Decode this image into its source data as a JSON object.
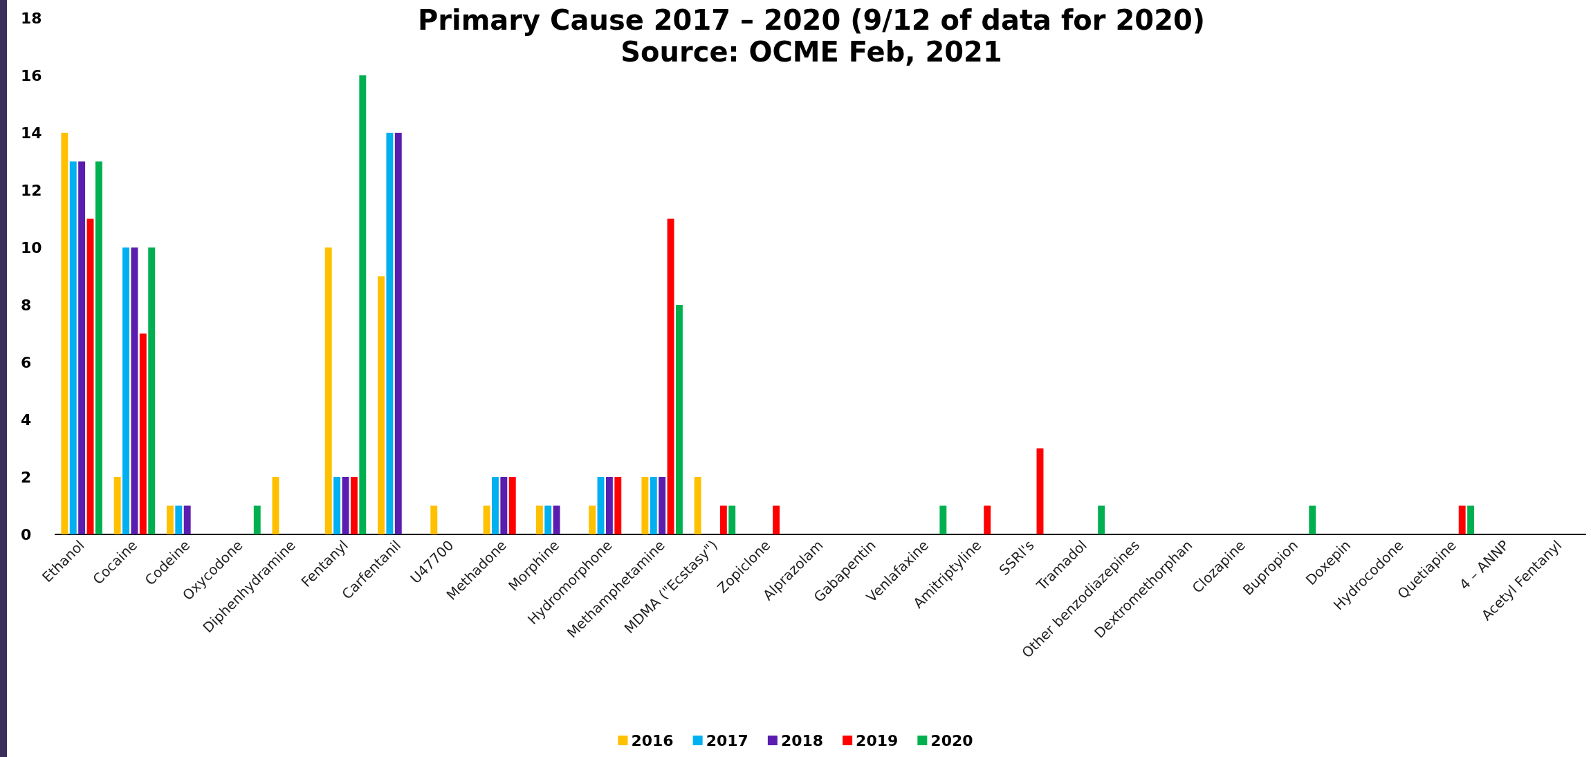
{
  "chart_data": {
    "type": "bar",
    "title": "Primary Cause 2017 – 2020 (9/12 of data for 2020)",
    "subtitle": "Source: OCME Feb, 2021",
    "categories": [
      "Ethanol",
      "Cocaine",
      "Codeine",
      "Oxycodone",
      "Diphenhydramine",
      "Fentanyl",
      "Carfentanil",
      "U47700",
      "Methadone",
      "Morphine",
      "Hydromorphone",
      "Methamphetamine",
      "MDMA (\"Ecstasy\")",
      "Zopiclone",
      "Alprazolam",
      "Gabapentin",
      "Venlafaxine",
      "Amitriptyline",
      "SSRI's",
      "Tramadol",
      "Other benzodiazepines",
      "Dextromethorphan",
      "Clozapine",
      "Bupropion",
      "Doxepin",
      "Hydrocodone",
      "Quetiapine",
      "4 – ANNP",
      "Acetyl Fentanyl"
    ],
    "series": [
      {
        "name": "2016",
        "color": "#ffc000",
        "values": [
          14,
          2,
          1,
          null,
          2,
          10,
          9,
          1,
          1,
          1,
          1,
          2,
          2,
          null,
          null,
          null,
          null,
          null,
          null,
          null,
          null,
          null,
          null,
          null,
          null,
          null,
          null,
          null,
          null
        ]
      },
      {
        "name": "2017",
        "color": "#00b0f0",
        "values": [
          13,
          10,
          1,
          null,
          null,
          2,
          14,
          null,
          2,
          1,
          2,
          2,
          null,
          null,
          null,
          null,
          null,
          null,
          null,
          null,
          null,
          null,
          null,
          null,
          null,
          null,
          null,
          null,
          null
        ]
      },
      {
        "name": "2018",
        "color": "#5b1db0",
        "values": [
          13,
          10,
          1,
          null,
          null,
          2,
          14,
          null,
          2,
          1,
          2,
          2,
          null,
          null,
          null,
          null,
          null,
          null,
          null,
          null,
          null,
          null,
          null,
          null,
          null,
          null,
          null,
          null,
          null
        ]
      },
      {
        "name": "2019",
        "color": "#ff0000",
        "values": [
          11,
          7,
          null,
          null,
          null,
          2,
          null,
          null,
          2,
          null,
          2,
          11,
          1,
          1,
          null,
          null,
          null,
          1,
          3,
          null,
          null,
          null,
          null,
          null,
          null,
          null,
          1,
          null,
          null
        ]
      },
      {
        "name": "2020",
        "color": "#00b050",
        "values": [
          13,
          10,
          null,
          1,
          null,
          16,
          null,
          null,
          null,
          null,
          null,
          8,
          1,
          null,
          null,
          null,
          1,
          null,
          null,
          1,
          null,
          null,
          null,
          1,
          null,
          null,
          1,
          null,
          null
        ]
      }
    ],
    "ylim": [
      0,
      18
    ],
    "yticks": [
      0,
      2,
      4,
      6,
      8,
      10,
      12,
      14,
      16,
      18
    ],
    "grid": false,
    "legend": "bottom"
  }
}
